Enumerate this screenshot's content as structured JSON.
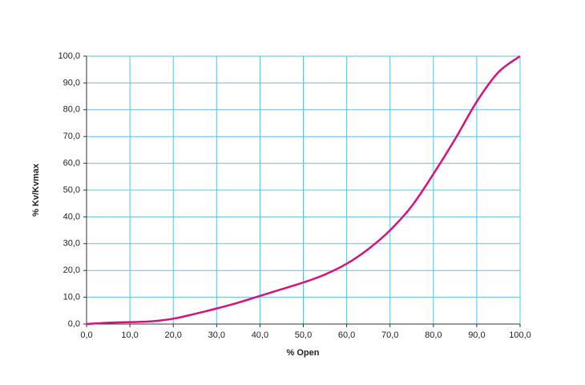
{
  "chart_data": {
    "type": "line",
    "xlabel": "% Open",
    "ylabel": "% Kv/Kvmax",
    "x": [
      0,
      5,
      10,
      15,
      20,
      25,
      30,
      35,
      40,
      45,
      50,
      55,
      60,
      65,
      70,
      75,
      80,
      85,
      90,
      95,
      100
    ],
    "series": [
      {
        "name": "Kv",
        "color": "#d6127c",
        "values": [
          0,
          0.5,
          0.7,
          1,
          2,
          3.8,
          5.8,
          8,
          10.5,
          13,
          15.5,
          18.5,
          22.5,
          28,
          35,
          44,
          56,
          69,
          83,
          94,
          100
        ]
      }
    ],
    "xlim": [
      0,
      100
    ],
    "ylim": [
      0,
      100
    ],
    "xticks": [
      {
        "value": 0,
        "label": "0,0"
      },
      {
        "value": 10,
        "label": "10,0"
      },
      {
        "value": 20,
        "label": "20,0"
      },
      {
        "value": 30,
        "label": "30,0"
      },
      {
        "value": 40,
        "label": "40,0"
      },
      {
        "value": 50,
        "label": "50,0"
      },
      {
        "value": 60,
        "label": "60,0"
      },
      {
        "value": 70,
        "label": "70,0"
      },
      {
        "value": 80,
        "label": "80,0"
      },
      {
        "value": 90,
        "label": "90,0"
      },
      {
        "value": 100,
        "label": "100,0"
      }
    ],
    "yticks": [
      {
        "value": 0,
        "label": "0,0"
      },
      {
        "value": 10,
        "label": "10,0"
      },
      {
        "value": 20,
        "label": "20,0"
      },
      {
        "value": 30,
        "label": "30,0"
      },
      {
        "value": 40,
        "label": "40,0"
      },
      {
        "value": 50,
        "label": "50,0"
      },
      {
        "value": 60,
        "label": "60,0"
      },
      {
        "value": 70,
        "label": "70,0"
      },
      {
        "value": 80,
        "label": "80,0"
      },
      {
        "value": 90,
        "label": "90,0"
      },
      {
        "value": 100,
        "label": "100,0"
      }
    ],
    "grid": true,
    "grid_color": "#5bc0e8"
  }
}
